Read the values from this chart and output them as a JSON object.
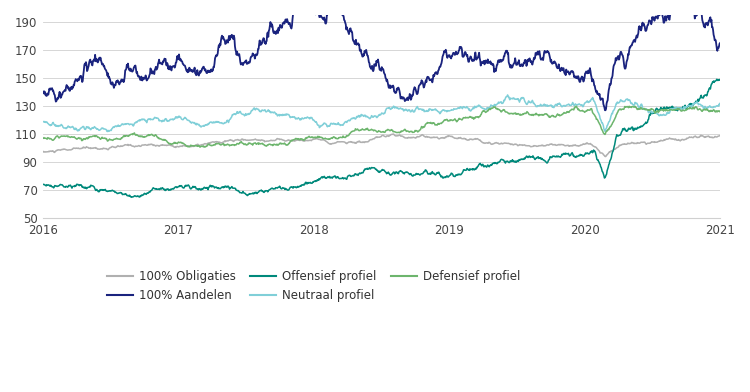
{
  "title": "",
  "ylim": [
    50,
    195
  ],
  "yticks": [
    50,
    70,
    90,
    110,
    130,
    150,
    170,
    190
  ],
  "xtick_years": [
    2016,
    2017,
    2018,
    2019,
    2020,
    2021
  ],
  "background_color": "#ffffff",
  "grid_color": "#d0d0d0",
  "series": [
    {
      "label": "100% Obligaties",
      "color": "#b0b0b0",
      "linewidth": 1.1
    },
    {
      "label": "100% Aandelen",
      "color": "#1a237e",
      "linewidth": 1.3
    },
    {
      "label": "Offensief profiel",
      "color": "#00897b",
      "linewidth": 1.1
    },
    {
      "label": "Neutraal profiel",
      "color": "#80cfd8",
      "linewidth": 1.1
    },
    {
      "label": "Defensief profiel",
      "color": "#6db56d",
      "linewidth": 1.1
    }
  ]
}
